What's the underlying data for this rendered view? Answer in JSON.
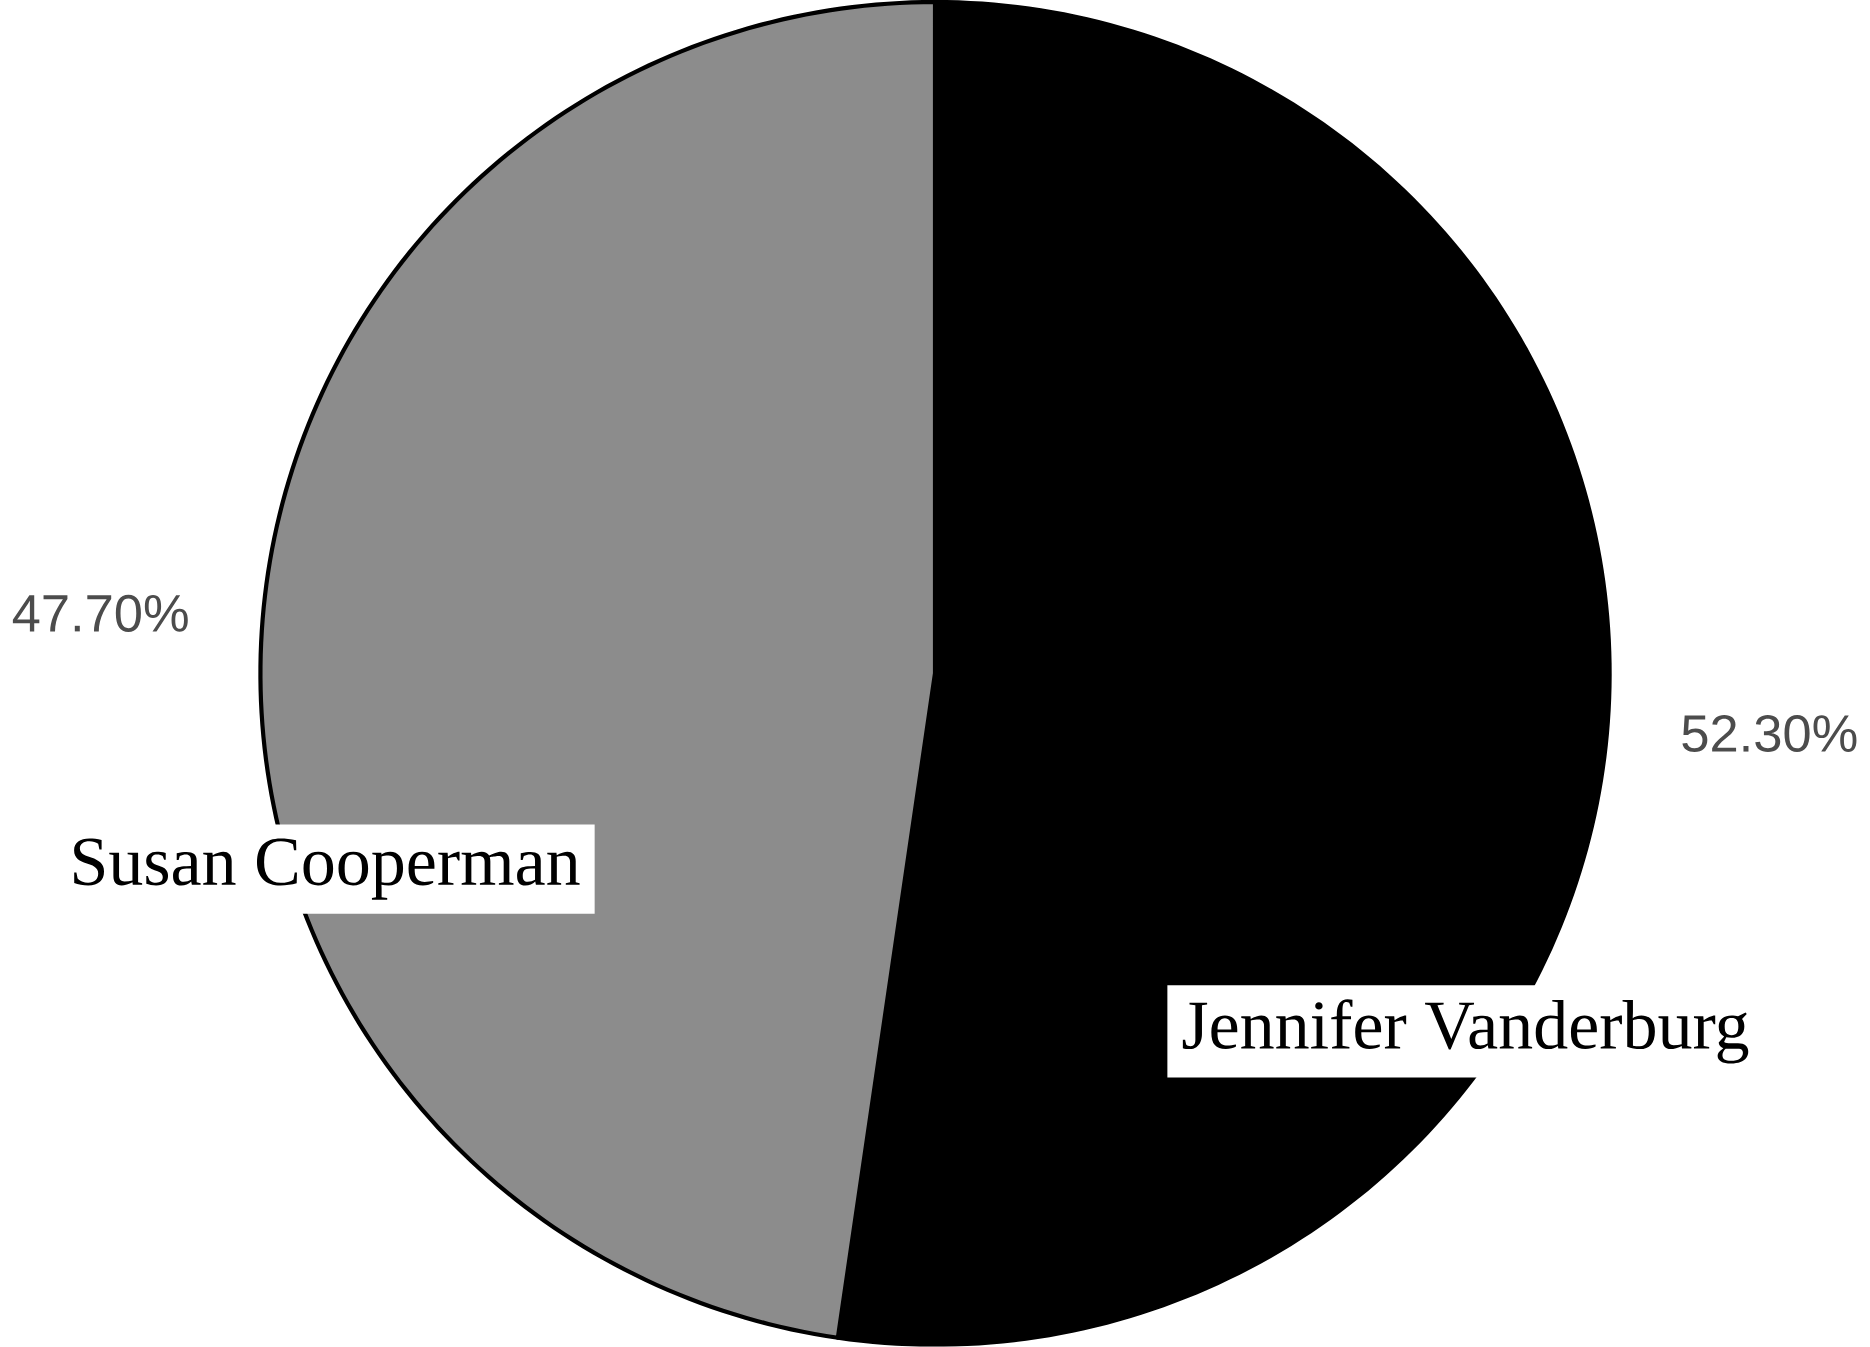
{
  "chart_data": {
    "type": "pie",
    "categories": [
      "Jennifer Vanderburg",
      "Susan Cooperman"
    ],
    "values": [
      52.3,
      47.7
    ],
    "colors": [
      "#000000",
      "#8c8c8c"
    ],
    "value_labels": [
      "52.30%",
      "47.70%"
    ]
  }
}
